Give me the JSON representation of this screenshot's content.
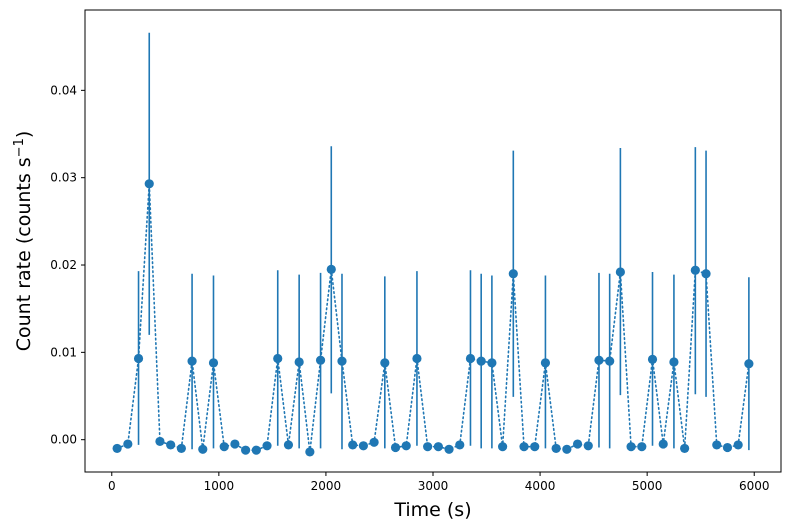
{
  "chart_data": {
    "type": "scatter",
    "xlabel": "Time (s)",
    "ylabel_main": "Count rate (counts s",
    "ylabel_sup": "−1",
    "ylabel_close": ")",
    "xlim": [
      -250,
      6250
    ],
    "ylim": [
      -0.0037,
      0.0492
    ],
    "xticks": [
      0,
      1000,
      2000,
      3000,
      4000,
      5000,
      6000
    ],
    "xtick_labels": [
      "0",
      "1000",
      "2000",
      "3000",
      "4000",
      "5000",
      "6000"
    ],
    "yticks": [
      0.0,
      0.01,
      0.02,
      0.03,
      0.04
    ],
    "ytick_labels": [
      "0.00",
      "0.01",
      "0.02",
      "0.03",
      "0.04"
    ],
    "grid": false,
    "color": "#1f77b4",
    "line_style": "dotted",
    "x": [
      50,
      150,
      250,
      350,
      450,
      550,
      650,
      750,
      850,
      950,
      1050,
      1150,
      1250,
      1350,
      1450,
      1550,
      1650,
      1750,
      1850,
      1950,
      2050,
      2150,
      2250,
      2350,
      2450,
      2550,
      2650,
      2750,
      2850,
      2950,
      3050,
      3150,
      3250,
      3350,
      3450,
      3550,
      3650,
      3750,
      3850,
      3950,
      4050,
      4150,
      4250,
      4350,
      4450,
      4550,
      4650,
      4750,
      4850,
      4950,
      5050,
      5150,
      5250,
      5350,
      5450,
      5550,
      5650,
      5750,
      5850,
      5950
    ],
    "y": [
      -0.001,
      -0.0005,
      0.0093,
      0.0293,
      -0.0002,
      -0.0006,
      -0.001,
      0.009,
      -0.0011,
      0.0088,
      -0.0008,
      -0.0005,
      -0.0012,
      -0.0012,
      -0.0007,
      0.0093,
      -0.0006,
      0.0089,
      -0.0014,
      0.0091,
      0.0195,
      0.009,
      -0.0006,
      -0.0007,
      -0.0003,
      0.0088,
      -0.0009,
      -0.0007,
      0.0093,
      -0.0008,
      -0.0008,
      -0.0011,
      -0.0006,
      0.0093,
      0.009,
      0.0088,
      -0.0008,
      0.019,
      -0.0008,
      -0.0008,
      0.0088,
      -0.001,
      -0.0011,
      -0.0005,
      -0.0007,
      0.0091,
      0.009,
      0.0192,
      -0.0008,
      -0.0008,
      0.0092,
      -0.0005,
      0.0089,
      -0.001,
      0.0194,
      0.019,
      -0.0006,
      -0.0009,
      -0.0006,
      0.0087
    ],
    "yerr_low": [
      -0.001,
      -0.0005,
      -0.0006,
      0.012,
      -0.0002,
      -0.0006,
      -0.001,
      -0.0011,
      -0.0011,
      -0.001,
      -0.0008,
      -0.0005,
      -0.0012,
      -0.0012,
      -0.0007,
      -0.0007,
      -0.0006,
      -0.001,
      -0.0014,
      -0.001,
      0.0053,
      -0.0011,
      -0.0006,
      -0.0007,
      -0.0003,
      -0.001,
      -0.0009,
      -0.0007,
      -0.0007,
      -0.0008,
      -0.0008,
      -0.0011,
      -0.0006,
      -0.0007,
      -0.001,
      -0.001,
      -0.0008,
      0.0049,
      -0.0008,
      -0.0008,
      -0.001,
      -0.001,
      -0.0011,
      -0.0005,
      -0.0007,
      -0.0009,
      -0.001,
      0.0051,
      -0.0008,
      -0.0008,
      -0.0007,
      -0.0005,
      -0.001,
      -0.001,
      0.0052,
      0.0049,
      -0.0006,
      -0.0009,
      -0.0006,
      -0.0012
    ],
    "yerr_high": [
      -0.001,
      -0.0005,
      0.0193,
      0.0466,
      -0.0002,
      -0.0006,
      -0.001,
      0.019,
      -0.0011,
      0.0188,
      -0.0008,
      -0.0005,
      -0.0012,
      -0.0012,
      -0.0007,
      0.0194,
      -0.0006,
      0.0189,
      -0.0014,
      0.0191,
      0.0336,
      0.019,
      -0.0006,
      -0.0007,
      -0.0003,
      0.0187,
      -0.0009,
      -0.0007,
      0.0193,
      -0.0008,
      -0.0008,
      -0.0011,
      -0.0006,
      0.0194,
      0.019,
      0.0188,
      -0.0008,
      0.0331,
      -0.0008,
      -0.0008,
      0.0188,
      -0.001,
      -0.0011,
      -0.0005,
      -0.0007,
      0.0191,
      0.019,
      0.0334,
      -0.0008,
      -0.0008,
      0.0192,
      -0.0005,
      0.0189,
      -0.001,
      0.0335,
      0.0331,
      -0.0006,
      -0.0009,
      -0.0006,
      0.0186
    ]
  }
}
